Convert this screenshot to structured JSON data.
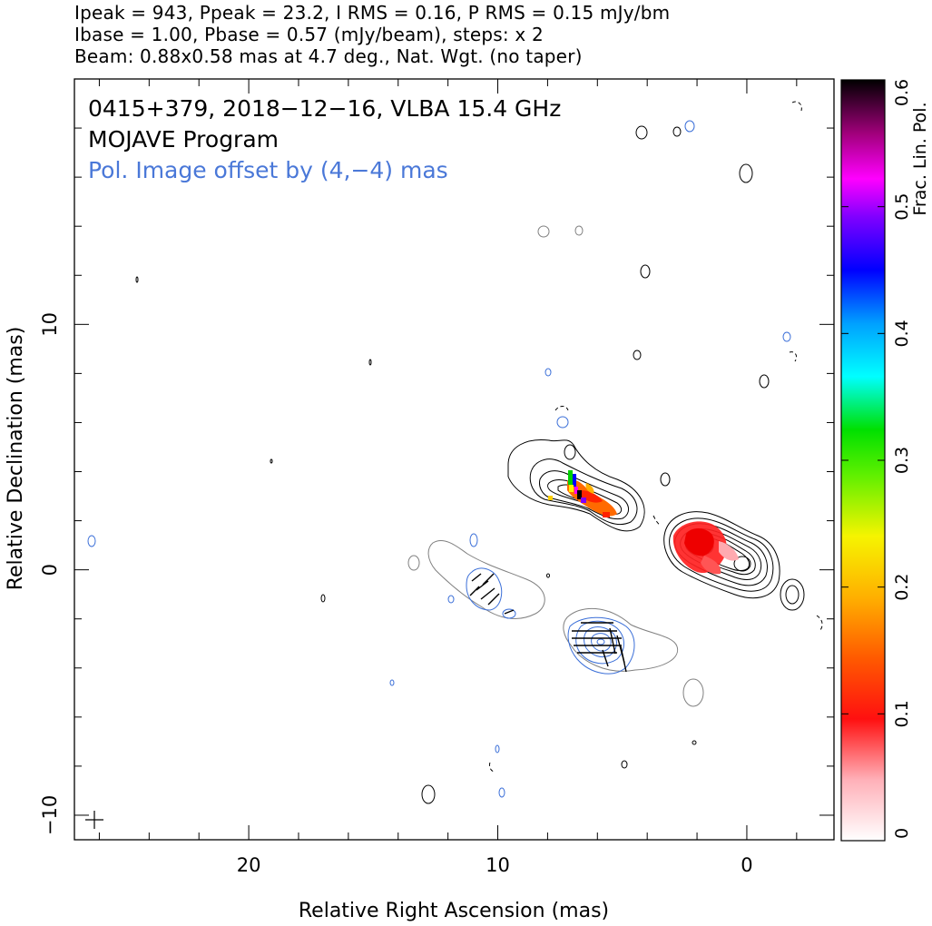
{
  "header": {
    "line1": "Ipeak = 943, Ppeak = 23.2, I RMS = 0.16, P RMS = 0.15 mJy/bm",
    "line2": "Ibase = 1.00, Pbase = 0.57 (mJy/beam), steps: x 2",
    "line3": "Beam: 0.88x0.58 mas at 4.7 deg., Nat. Wgt. (no taper)"
  },
  "annotations": {
    "source": "0415+379, 2018−12−16, VLBA 15.4 GHz",
    "program": "MOJAVE Program",
    "offset_note": "Pol. Image offset by (4,−4) mas"
  },
  "axes": {
    "xlabel": "Relative Right Ascension (mas)",
    "ylabel": "Relative Declination (mas)",
    "xticks": [
      {
        "value": 20,
        "label": "20"
      },
      {
        "value": 10,
        "label": "10"
      },
      {
        "value": 0,
        "label": "0"
      }
    ],
    "yticks": [
      {
        "value": 10,
        "label": "10"
      },
      {
        "value": 0,
        "label": "0"
      },
      {
        "value": -10,
        "label": "−10"
      }
    ],
    "xlim": [
      27,
      -3.5
    ],
    "ylim": [
      -11,
      20
    ]
  },
  "colorbar": {
    "label": "Frac. Lin. Pol.",
    "range": [
      0,
      0.6
    ],
    "ticks": [
      {
        "value": 0,
        "label": "0"
      },
      {
        "value": 0.1,
        "label": "0.1"
      },
      {
        "value": 0.2,
        "label": "0.2"
      },
      {
        "value": 0.3,
        "label": "0.3"
      },
      {
        "value": 0.4,
        "label": "0.4"
      },
      {
        "value": 0.5,
        "label": "0.5"
      },
      {
        "value": 0.6,
        "label": "0.6"
      }
    ]
  },
  "colors": {
    "total_intensity_contours": "#000000",
    "polarized_contours": "#3b6fd8",
    "polarized_outer_contour": "#808080",
    "annotation_blue": "#4a78d8"
  }
}
